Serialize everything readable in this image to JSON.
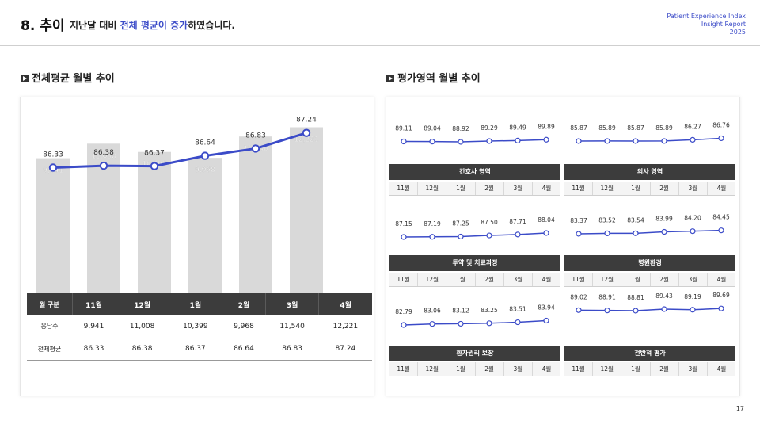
{
  "header": {
    "number": "8. 추이",
    "sub_before": "지난달 대비 ",
    "sub_highlight": "전체 평균이 증가",
    "sub_after": "하였습니다.",
    "right_line1": "Patient Experience Index",
    "right_line2": "Insight Report",
    "right_line3": "2025"
  },
  "left_title": "전체평균 월별 추이",
  "right_title": "평가영역 월별 추이",
  "page_number": "17",
  "colors": {
    "line": "#3b4bc8",
    "bar": "#d9d9d9",
    "dark": "#3c3c3c"
  },
  "chart_data": [
    {
      "type": "bar",
      "categories": [
        "11월",
        "12월",
        "1월",
        "2월",
        "3월",
        "4월"
      ],
      "series": [
        {
          "name": "응답수",
          "type": "bar",
          "values": [
            9941,
            11008,
            10399,
            9968,
            11540,
            12221
          ],
          "labels": [
            "9,941",
            "11,008",
            "10,399",
            "9,968",
            "11,540",
            "12,221"
          ]
        },
        {
          "name": "전체평균",
          "type": "line",
          "values": [
            86.33,
            86.38,
            86.37,
            86.64,
            86.83,
            87.24
          ],
          "labels": [
            "86.33",
            "86.38",
            "86.37",
            "86.64",
            "86.83",
            "87.24"
          ]
        }
      ],
      "table": {
        "header_label": "월 구분",
        "rows": [
          {
            "label": "응답수",
            "cells": [
              "9,941",
              "11,008",
              "10,399",
              "9,968",
              "11,540",
              "12,221"
            ]
          },
          {
            "label": "전체평균",
            "cells": [
              "86.33",
              "86.38",
              "86.37",
              "86.64",
              "86.83",
              "87.24"
            ]
          }
        ]
      }
    },
    {
      "type": "line",
      "name": "간호사 영역",
      "categories": [
        "11월",
        "12월",
        "1월",
        "2월",
        "3월",
        "4월"
      ],
      "values": [
        89.11,
        89.04,
        88.92,
        89.29,
        89.49,
        89.89
      ],
      "labels": [
        "89.11",
        "89.04",
        "88.92",
        "89.29",
        "89.49",
        "89.89"
      ]
    },
    {
      "type": "line",
      "name": "의사 영역",
      "categories": [
        "11월",
        "12월",
        "1월",
        "2월",
        "3월",
        "4월"
      ],
      "values": [
        85.87,
        85.89,
        85.87,
        85.89,
        86.27,
        86.76
      ],
      "labels": [
        "85.87",
        "85.89",
        "85.87",
        "85.89",
        "86.27",
        "86.76"
      ]
    },
    {
      "type": "line",
      "name": "투약 및 치료과정",
      "categories": [
        "11월",
        "12월",
        "1월",
        "2월",
        "3월",
        "4월"
      ],
      "values": [
        87.15,
        87.19,
        87.25,
        87.5,
        87.71,
        88.04
      ],
      "labels": [
        "87.15",
        "87.19",
        "87.25",
        "87.50",
        "87.71",
        "88.04"
      ]
    },
    {
      "type": "line",
      "name": "병원환경",
      "categories": [
        "11월",
        "12월",
        "1월",
        "2월",
        "3월",
        "4월"
      ],
      "values": [
        83.37,
        83.52,
        83.54,
        83.99,
        84.2,
        84.45
      ],
      "labels": [
        "83.37",
        "83.52",
        "83.54",
        "83.99",
        "84.20",
        "84.45"
      ]
    },
    {
      "type": "line",
      "name": "환자권리 보장",
      "categories": [
        "11월",
        "12월",
        "1월",
        "2월",
        "3월",
        "4월"
      ],
      "values": [
        82.79,
        83.06,
        83.12,
        83.25,
        83.51,
        83.94
      ],
      "labels": [
        "82.79",
        "83.06",
        "83.12",
        "83.25",
        "83.51",
        "83.94"
      ]
    },
    {
      "type": "line",
      "name": "전반적 평가",
      "categories": [
        "11월",
        "12월",
        "1월",
        "2월",
        "3월",
        "4월"
      ],
      "values": [
        89.02,
        88.91,
        88.81,
        89.43,
        89.19,
        89.69
      ],
      "labels": [
        "89.02",
        "88.91",
        "88.81",
        "89.43",
        "89.19",
        "89.69"
      ]
    }
  ]
}
